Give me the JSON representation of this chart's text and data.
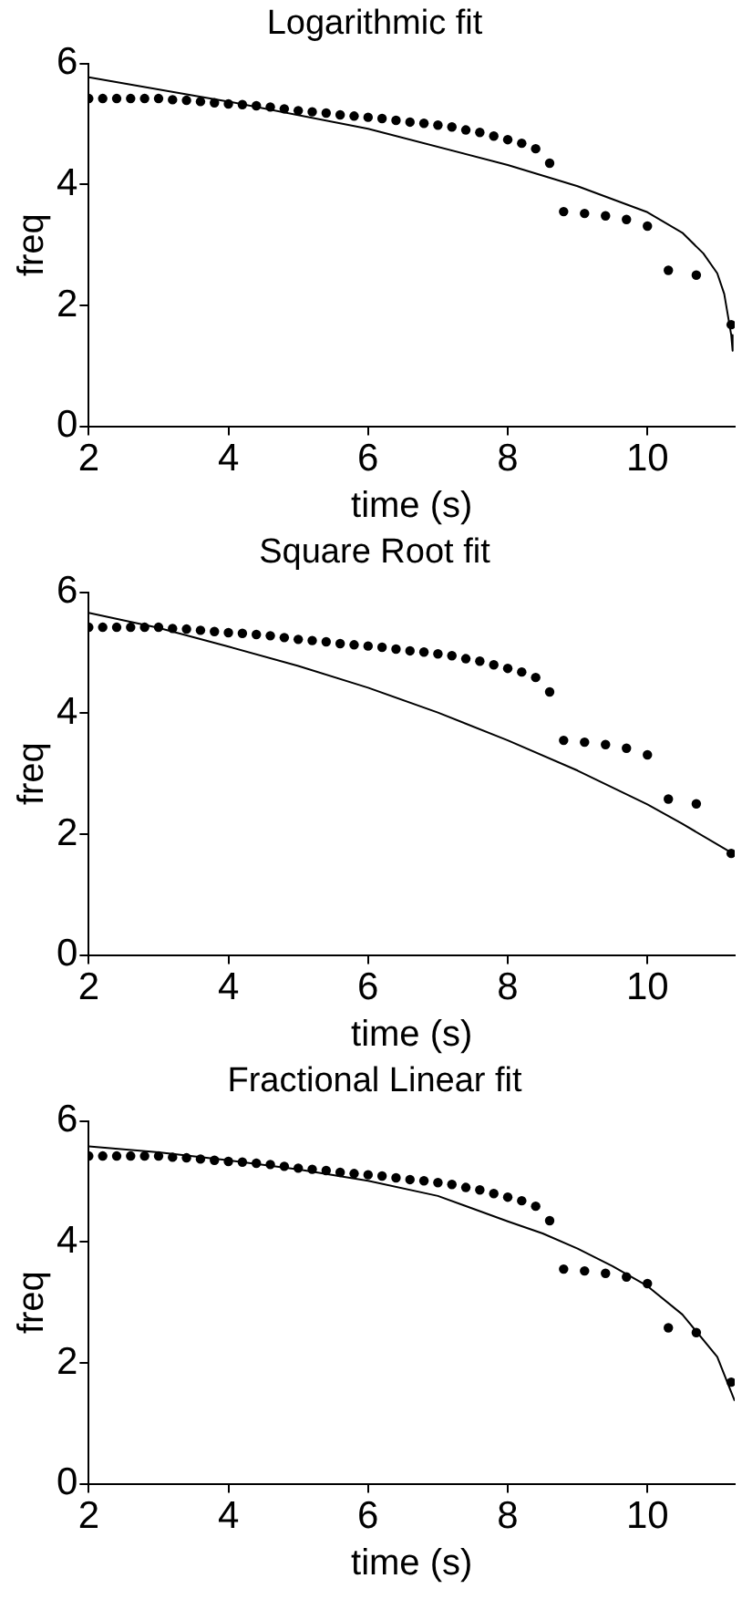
{
  "chart_data": [
    {
      "type": "scatter",
      "title": "Logarithmic fit",
      "xlabel": "time (s)",
      "ylabel": "freq",
      "xlim": [
        2,
        11.25
      ],
      "ylim": [
        0,
        6
      ],
      "xticks": [
        2,
        4,
        6,
        8,
        10
      ],
      "yticks": [
        0,
        2,
        4,
        6
      ],
      "x": [
        2.0,
        2.2,
        2.4,
        2.6,
        2.8,
        3.0,
        3.2,
        3.4,
        3.6,
        3.8,
        4.0,
        4.2,
        4.4,
        4.6,
        4.8,
        5.0,
        5.2,
        5.4,
        5.6,
        5.8,
        6.0,
        6.2,
        6.4,
        6.6,
        6.8,
        7.0,
        7.2,
        7.4,
        7.6,
        7.8,
        8.0,
        8.2,
        8.4,
        8.6,
        8.8,
        9.1,
        9.4,
        9.7,
        10.0,
        10.3,
        10.7,
        11.2
      ],
      "series": [
        {
          "marker": "circle",
          "color": "#000000",
          "values": [
            5.42,
            5.42,
            5.42,
            5.42,
            5.42,
            5.42,
            5.4,
            5.39,
            5.37,
            5.35,
            5.33,
            5.32,
            5.3,
            5.28,
            5.25,
            5.22,
            5.2,
            5.18,
            5.15,
            5.13,
            5.11,
            5.09,
            5.06,
            5.03,
            5.01,
            4.98,
            4.95,
            4.9,
            4.86,
            4.8,
            4.74,
            4.68,
            4.59,
            4.35,
            3.55,
            3.52,
            3.48,
            3.42,
            3.31,
            2.58,
            2.5,
            1.68
          ]
        },
        {
          "type": "line",
          "marker": "none",
          "color": "#000000",
          "x": [
            2,
            4,
            6,
            8,
            9,
            10,
            10.5,
            10.8,
            11.0,
            11.1,
            11.2,
            11.22
          ],
          "values": [
            5.77,
            5.37,
            4.92,
            4.32,
            3.97,
            3.54,
            3.2,
            2.86,
            2.53,
            2.19,
            1.51,
            1.25
          ]
        }
      ]
    },
    {
      "type": "scatter",
      "title": "Square Root fit",
      "xlabel": "time (s)",
      "ylabel": "freq",
      "xlim": [
        2,
        11.25
      ],
      "ylim": [
        0,
        6
      ],
      "xticks": [
        2,
        4,
        6,
        8,
        10
      ],
      "yticks": [
        0,
        2,
        4,
        6
      ],
      "x": [
        2.0,
        2.2,
        2.4,
        2.6,
        2.8,
        3.0,
        3.2,
        3.4,
        3.6,
        3.8,
        4.0,
        4.2,
        4.4,
        4.6,
        4.8,
        5.0,
        5.2,
        5.4,
        5.6,
        5.8,
        6.0,
        6.2,
        6.4,
        6.6,
        6.8,
        7.0,
        7.2,
        7.4,
        7.6,
        7.8,
        8.0,
        8.2,
        8.4,
        8.6,
        8.8,
        9.1,
        9.4,
        9.7,
        10.0,
        10.3,
        10.7,
        11.2
      ],
      "series": [
        {
          "marker": "circle",
          "color": "#000000",
          "values": [
            5.42,
            5.42,
            5.42,
            5.42,
            5.42,
            5.42,
            5.4,
            5.39,
            5.37,
            5.35,
            5.33,
            5.32,
            5.3,
            5.28,
            5.25,
            5.22,
            5.2,
            5.18,
            5.15,
            5.13,
            5.11,
            5.09,
            5.06,
            5.03,
            5.01,
            4.98,
            4.95,
            4.9,
            4.86,
            4.8,
            4.74,
            4.68,
            4.59,
            4.35,
            3.55,
            3.52,
            3.48,
            3.42,
            3.31,
            2.58,
            2.5,
            1.68
          ]
        },
        {
          "type": "line",
          "marker": "none",
          "color": "#000000",
          "x": [
            2,
            3,
            4,
            5,
            6,
            7,
            8,
            9,
            10,
            10.5,
            11.22
          ],
          "values": [
            5.66,
            5.41,
            5.1,
            4.78,
            4.42,
            4.01,
            3.55,
            3.05,
            2.49,
            2.17,
            1.68
          ]
        }
      ]
    },
    {
      "type": "scatter",
      "title": "Fractional Linear fit",
      "xlabel": "time (s)",
      "ylabel": "freq",
      "xlim": [
        2,
        11.25
      ],
      "ylim": [
        0,
        6
      ],
      "xticks": [
        2,
        4,
        6,
        8,
        10
      ],
      "yticks": [
        0,
        2,
        4,
        6
      ],
      "x": [
        2.0,
        2.2,
        2.4,
        2.6,
        2.8,
        3.0,
        3.2,
        3.4,
        3.6,
        3.8,
        4.0,
        4.2,
        4.4,
        4.6,
        4.8,
        5.0,
        5.2,
        5.4,
        5.6,
        5.8,
        6.0,
        6.2,
        6.4,
        6.6,
        6.8,
        7.0,
        7.2,
        7.4,
        7.6,
        7.8,
        8.0,
        8.2,
        8.4,
        8.6,
        8.8,
        9.1,
        9.4,
        9.7,
        10.0,
        10.3,
        10.7,
        11.2
      ],
      "series": [
        {
          "marker": "circle",
          "color": "#000000",
          "values": [
            5.42,
            5.42,
            5.42,
            5.42,
            5.42,
            5.42,
            5.4,
            5.39,
            5.37,
            5.35,
            5.33,
            5.32,
            5.3,
            5.28,
            5.25,
            5.22,
            5.2,
            5.18,
            5.15,
            5.13,
            5.11,
            5.09,
            5.06,
            5.03,
            5.01,
            4.98,
            4.95,
            4.9,
            4.86,
            4.8,
            4.74,
            4.68,
            4.59,
            4.35,
            3.55,
            3.52,
            3.48,
            3.42,
            3.31,
            2.58,
            2.5,
            1.68
          ]
        },
        {
          "type": "line",
          "marker": "none",
          "color": "#000000",
          "x": [
            2,
            3,
            4,
            5,
            6,
            7,
            8,
            8.5,
            9,
            9.5,
            10,
            10.5,
            11,
            11.25
          ],
          "values": [
            5.58,
            5.48,
            5.35,
            5.2,
            5.01,
            4.76,
            4.34,
            4.14,
            3.89,
            3.6,
            3.27,
            2.8,
            2.1,
            1.37
          ]
        }
      ]
    }
  ]
}
